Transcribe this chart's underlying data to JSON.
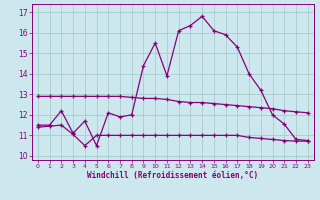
{
  "xlabel": "Windchill (Refroidissement éolien,°C)",
  "xlim": [
    -0.5,
    23.5
  ],
  "ylim": [
    9.8,
    17.4
  ],
  "yticks": [
    10,
    11,
    12,
    13,
    14,
    15,
    16,
    17
  ],
  "xticks": [
    0,
    1,
    2,
    3,
    4,
    5,
    6,
    7,
    8,
    9,
    10,
    11,
    12,
    13,
    14,
    15,
    16,
    17,
    18,
    19,
    20,
    21,
    22,
    23
  ],
  "bg_color": "#cce8ee",
  "grid_color": "#aacccc",
  "line_color": "#880077",
  "lines": [
    {
      "x": [
        0,
        1,
        2,
        3,
        4,
        5,
        6,
        7,
        8,
        9,
        10,
        11,
        12,
        13,
        14,
        15,
        16,
        17,
        18,
        19,
        20,
        21,
        22,
        23
      ],
      "y": [
        11.5,
        11.5,
        12.2,
        11.1,
        11.7,
        10.5,
        12.1,
        11.9,
        12.0,
        14.4,
        15.5,
        13.9,
        16.1,
        16.35,
        16.8,
        16.1,
        15.9,
        15.3,
        14.0,
        13.2,
        12.0,
        11.55,
        10.8,
        10.75
      ]
    },
    {
      "x": [
        0,
        1,
        2,
        3,
        4,
        5,
        6,
        7,
        8,
        9,
        10,
        11,
        12,
        13,
        14,
        15,
        16,
        17,
        18,
        19,
        20,
        21,
        22,
        23
      ],
      "y": [
        12.9,
        12.9,
        12.9,
        12.9,
        12.9,
        12.9,
        12.9,
        12.9,
        12.85,
        12.8,
        12.8,
        12.75,
        12.65,
        12.6,
        12.6,
        12.55,
        12.5,
        12.45,
        12.4,
        12.35,
        12.3,
        12.2,
        12.15,
        12.1
      ]
    },
    {
      "x": [
        0,
        1,
        2,
        3,
        4,
        5,
        6,
        7,
        8,
        9,
        10,
        11,
        12,
        13,
        14,
        15,
        16,
        17,
        18,
        19,
        20,
        21,
        22,
        23
      ],
      "y": [
        11.4,
        11.45,
        11.5,
        11.05,
        10.5,
        11.0,
        11.0,
        11.0,
        11.0,
        11.0,
        11.0,
        11.0,
        11.0,
        11.0,
        11.0,
        11.0,
        11.0,
        11.0,
        10.9,
        10.85,
        10.8,
        10.75,
        10.72,
        10.72
      ]
    }
  ]
}
